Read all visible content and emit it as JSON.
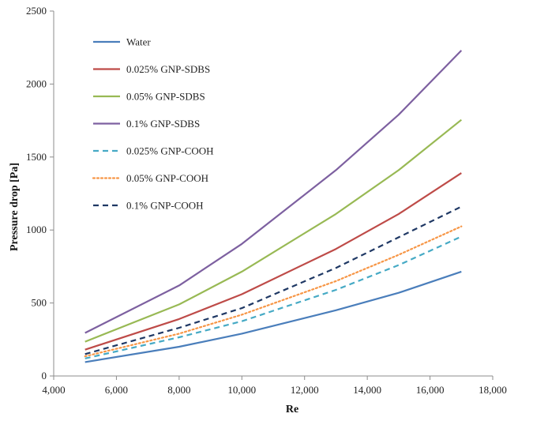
{
  "chart_data": {
    "type": "line",
    "title": "",
    "xlabel": "Re",
    "ylabel": "Pressure drop [Pa]",
    "xlim": [
      4000,
      18000
    ],
    "ylim": [
      0,
      2500
    ],
    "xticks": [
      4000,
      6000,
      8000,
      10000,
      12000,
      14000,
      16000,
      18000
    ],
    "xtick_labels": [
      "4,000",
      "6,000",
      "8,000",
      "10,000",
      "12,000",
      "14,000",
      "16,000",
      "18,000"
    ],
    "yticks": [
      0,
      500,
      1000,
      1500,
      2000,
      2500
    ],
    "ytick_labels": [
      "0",
      "500",
      "1000",
      "1500",
      "2000",
      "2500"
    ],
    "grid": false,
    "legend_position": "top-left",
    "x": [
      5000,
      8000,
      10000,
      13000,
      15000,
      17000
    ],
    "series": [
      {
        "name": "Water",
        "values": [
          95,
          200,
          290,
          450,
          570,
          715
        ],
        "color": "#4a7ebb",
        "dash": "solid"
      },
      {
        "name": "0.025% GNP-SDBS",
        "values": [
          180,
          390,
          560,
          870,
          1110,
          1390
        ],
        "color": "#be4b48",
        "dash": "solid"
      },
      {
        "name": "0.05% GNP-SDBS",
        "values": [
          235,
          490,
          715,
          1110,
          1410,
          1755
        ],
        "color": "#98b954",
        "dash": "solid"
      },
      {
        "name": "0.1% GNP-SDBS",
        "values": [
          295,
          620,
          905,
          1410,
          1790,
          2230
        ],
        "color": "#7d60a0",
        "dash": "solid"
      },
      {
        "name": "0.025% GNP-COOH",
        "values": [
          120,
          265,
          375,
          590,
          760,
          955
        ],
        "color": "#46aac5",
        "dash": "dash"
      },
      {
        "name": "0.05% GNP-COOH",
        "values": [
          135,
          290,
          420,
          650,
          830,
          1025
        ],
        "color": "#f79646",
        "dash": "dot"
      },
      {
        "name": "0.1% GNP-COOH",
        "values": [
          150,
          330,
          465,
          740,
          950,
          1160
        ],
        "color": "#1f3864",
        "dash": "dash"
      }
    ]
  }
}
